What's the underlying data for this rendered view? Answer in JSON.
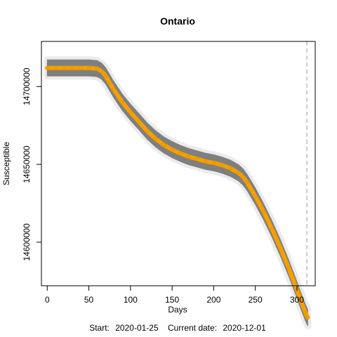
{
  "chart_data": {
    "type": "line",
    "title": "Ontario",
    "xlabel": "Days",
    "ylabel": "Susceptible",
    "xlim": [
      -7,
      322
    ],
    "ylim": [
      14572000,
      14729000
    ],
    "x_ticks": [
      0,
      50,
      100,
      150,
      200,
      250,
      300
    ],
    "y_ticks": [
      14600000,
      14650000,
      14700000
    ],
    "grid": false,
    "legend": "none",
    "current_day": 312,
    "band_halfwidth": 5200,
    "series": [
      {
        "x": [
          0,
          10,
          20,
          30,
          40,
          50,
          60,
          65,
          70,
          75,
          80,
          90,
          100,
          110,
          120,
          130,
          140,
          150,
          160,
          170,
          180,
          190,
          200,
          210,
          220,
          230,
          235,
          240,
          250,
          260,
          270,
          280,
          290,
          300,
          305,
          310,
          313
        ],
        "y": [
          14712000,
          14712000,
          14712000,
          14712000,
          14712000,
          14712000,
          14711500,
          14710000,
          14707000,
          14702500,
          14698000,
          14690000,
          14683500,
          14677500,
          14671500,
          14666500,
          14662500,
          14659500,
          14657000,
          14655000,
          14653500,
          14652000,
          14651000,
          14649500,
          14647500,
          14644500,
          14642000,
          14638500,
          14629500,
          14619500,
          14608500,
          14596500,
          14583500,
          14569500,
          14562000,
          14555000,
          14551500
        ]
      }
    ],
    "footer": {
      "start_label": "Start:",
      "start_value": "2020-01-25",
      "current_label": "Current date:",
      "current_value": "2020-12-01"
    },
    "colors": {
      "band": "#7f7f7f",
      "band_halo": "#c8c8c8",
      "line": "#f5a000",
      "vline": "#bdbdbd",
      "axis": "#000000"
    }
  }
}
